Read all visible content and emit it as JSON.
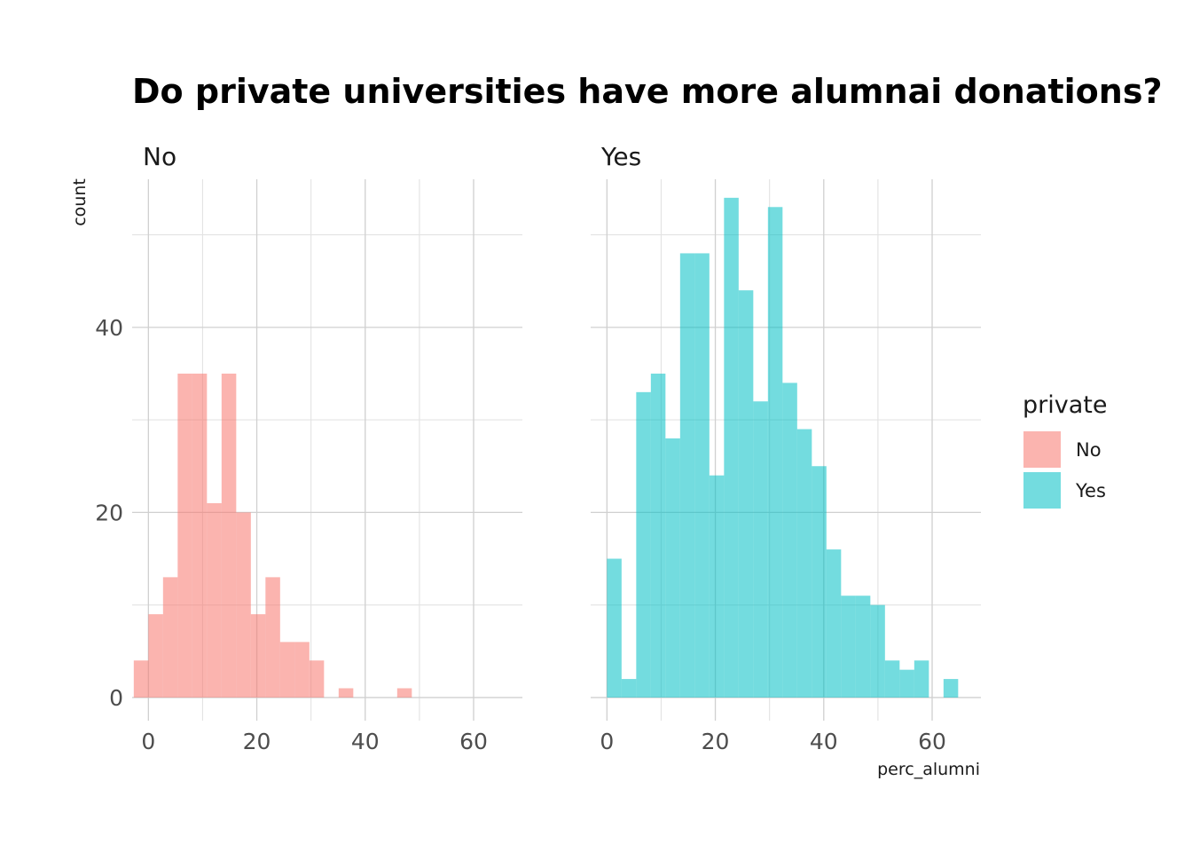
{
  "colors": {
    "No": "#F8766D",
    "Yes": "#00BFC4"
  },
  "chart_data": {
    "type": "bar",
    "title": "Do private universities have more alumnai donations?",
    "xlabel": "perc_alumni",
    "ylabel": "count",
    "xlim": [
      -3,
      69
    ],
    "ylim": [
      -2.5,
      56
    ],
    "x_ticks": [
      0,
      20,
      40,
      60
    ],
    "y_ticks": [
      0,
      20,
      40
    ],
    "y_minor": [
      10,
      30,
      50
    ],
    "x_minor": [
      10,
      30,
      50
    ],
    "grid": true,
    "bin_width": 2.7,
    "bar_opacity": 0.55,
    "legend": {
      "title": "private",
      "position": "right",
      "entries": [
        {
          "label": "No",
          "color": "#F8766D"
        },
        {
          "label": "Yes",
          "color": "#00BFC4"
        }
      ]
    },
    "panels": [
      {
        "strip": "No",
        "fill": "#F8766D",
        "bins": [
          {
            "x": -1.35,
            "count": 4
          },
          {
            "x": 1.35,
            "count": 9
          },
          {
            "x": 4.05,
            "count": 13
          },
          {
            "x": 6.75,
            "count": 35
          },
          {
            "x": 9.45,
            "count": 35
          },
          {
            "x": 12.15,
            "count": 21
          },
          {
            "x": 14.85,
            "count": 35
          },
          {
            "x": 17.55,
            "count": 20
          },
          {
            "x": 20.25,
            "count": 9
          },
          {
            "x": 22.95,
            "count": 13
          },
          {
            "x": 25.65,
            "count": 6
          },
          {
            "x": 28.35,
            "count": 6
          },
          {
            "x": 31.05,
            "count": 4
          },
          {
            "x": 36.45,
            "count": 1
          },
          {
            "x": 47.25,
            "count": 1
          }
        ]
      },
      {
        "strip": "Yes",
        "fill": "#00BFC4",
        "bins": [
          {
            "x": 1.35,
            "count": 15
          },
          {
            "x": 4.05,
            "count": 2
          },
          {
            "x": 6.75,
            "count": 33
          },
          {
            "x": 9.45,
            "count": 35
          },
          {
            "x": 12.15,
            "count": 28
          },
          {
            "x": 14.85,
            "count": 48
          },
          {
            "x": 17.55,
            "count": 48
          },
          {
            "x": 20.25,
            "count": 24
          },
          {
            "x": 22.95,
            "count": 54
          },
          {
            "x": 25.65,
            "count": 44
          },
          {
            "x": 28.35,
            "count": 32
          },
          {
            "x": 31.05,
            "count": 53
          },
          {
            "x": 33.75,
            "count": 34
          },
          {
            "x": 36.45,
            "count": 29
          },
          {
            "x": 39.15,
            "count": 25
          },
          {
            "x": 41.85,
            "count": 16
          },
          {
            "x": 44.55,
            "count": 11
          },
          {
            "x": 47.25,
            "count": 11
          },
          {
            "x": 49.95,
            "count": 10
          },
          {
            "x": 52.65,
            "count": 4
          },
          {
            "x": 55.35,
            "count": 3
          },
          {
            "x": 58.05,
            "count": 4
          },
          {
            "x": 63.45,
            "count": 2
          }
        ]
      }
    ]
  }
}
